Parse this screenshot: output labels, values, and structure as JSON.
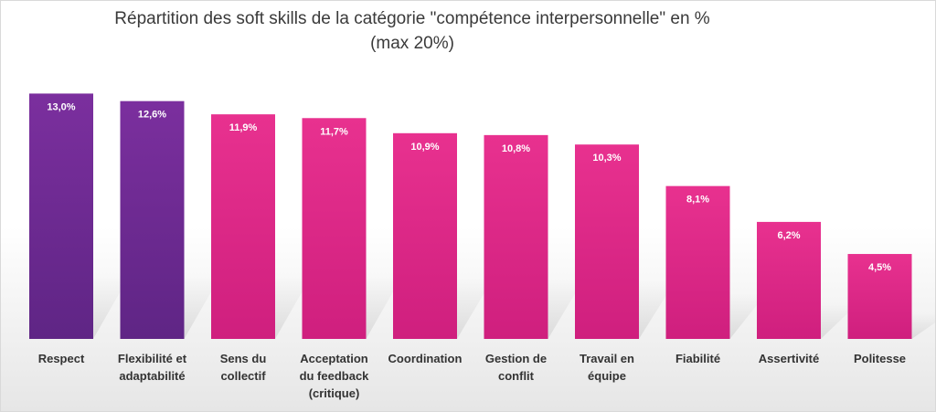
{
  "chart_data": {
    "type": "bar",
    "title_line1": "Répartition des soft skills de la catégorie \"compétence interpersonnelle\" en %",
    "title_line2": "(max 20%)",
    "categories": [
      "Respect",
      "Flexibilité et adaptabilité",
      "Sens du collectif",
      "Acceptation du feedback (critique)",
      "Coordination",
      "Gestion de conflit",
      "Travail en équipe",
      "Fiabilité",
      "Assertivité",
      "Politesse"
    ],
    "category_lines": [
      [
        "Respect"
      ],
      [
        "Flexibilité et",
        "adaptabilité"
      ],
      [
        "Sens du",
        "collectif"
      ],
      [
        "Acceptation",
        "du feedback",
        "(critique)"
      ],
      [
        "Coordination"
      ],
      [
        "Gestion de",
        "conflit"
      ],
      [
        "Travail en",
        "équipe"
      ],
      [
        "Fiabilité"
      ],
      [
        "Assertivité"
      ],
      [
        "Politesse"
      ]
    ],
    "values": [
      13.0,
      12.6,
      11.9,
      11.7,
      10.9,
      10.8,
      10.3,
      8.1,
      6.2,
      4.5
    ],
    "value_labels": [
      "13,0%",
      "12,6%",
      "11,9%",
      "11,7%",
      "10,9%",
      "10,8%",
      "10,3%",
      "8,1%",
      "6,2%",
      "4,5%"
    ],
    "ylim": [
      0,
      20
    ],
    "grid": false,
    "legend": "none",
    "colors": {
      "highlight": "#7b2f9e",
      "highlight_dark": "#5f2585",
      "default": "#e8318f",
      "default_dark": "#cf1f7e"
    },
    "highlight_indices": [
      0,
      1
    ]
  }
}
